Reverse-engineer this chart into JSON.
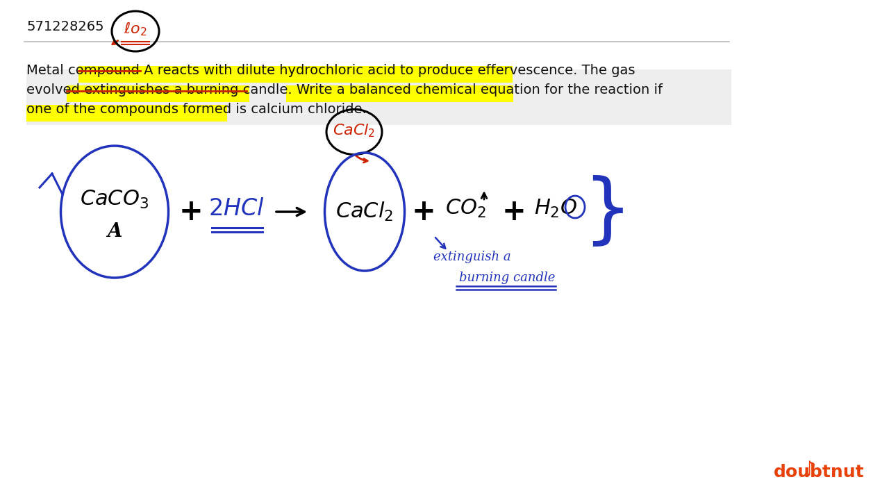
{
  "bg_color": "#ffffff",
  "question_id": "571228265",
  "q_line1": "Metal compound A reacts with dilute hydrochloric acid to produce effervescence. The gas",
  "q_line2": "evolved extinguishes a burning candle. Write a balanced chemical equation for the reaction if",
  "q_line3": "one of the compounds formed is calcium chloride.",
  "highlight_color": "#ffff00",
  "text_color": "#111111",
  "blue_color": "#2233bb",
  "red_color": "#cc2200",
  "doubtnut_orange": "#e8420a",
  "panel_color": "#eeeeee"
}
